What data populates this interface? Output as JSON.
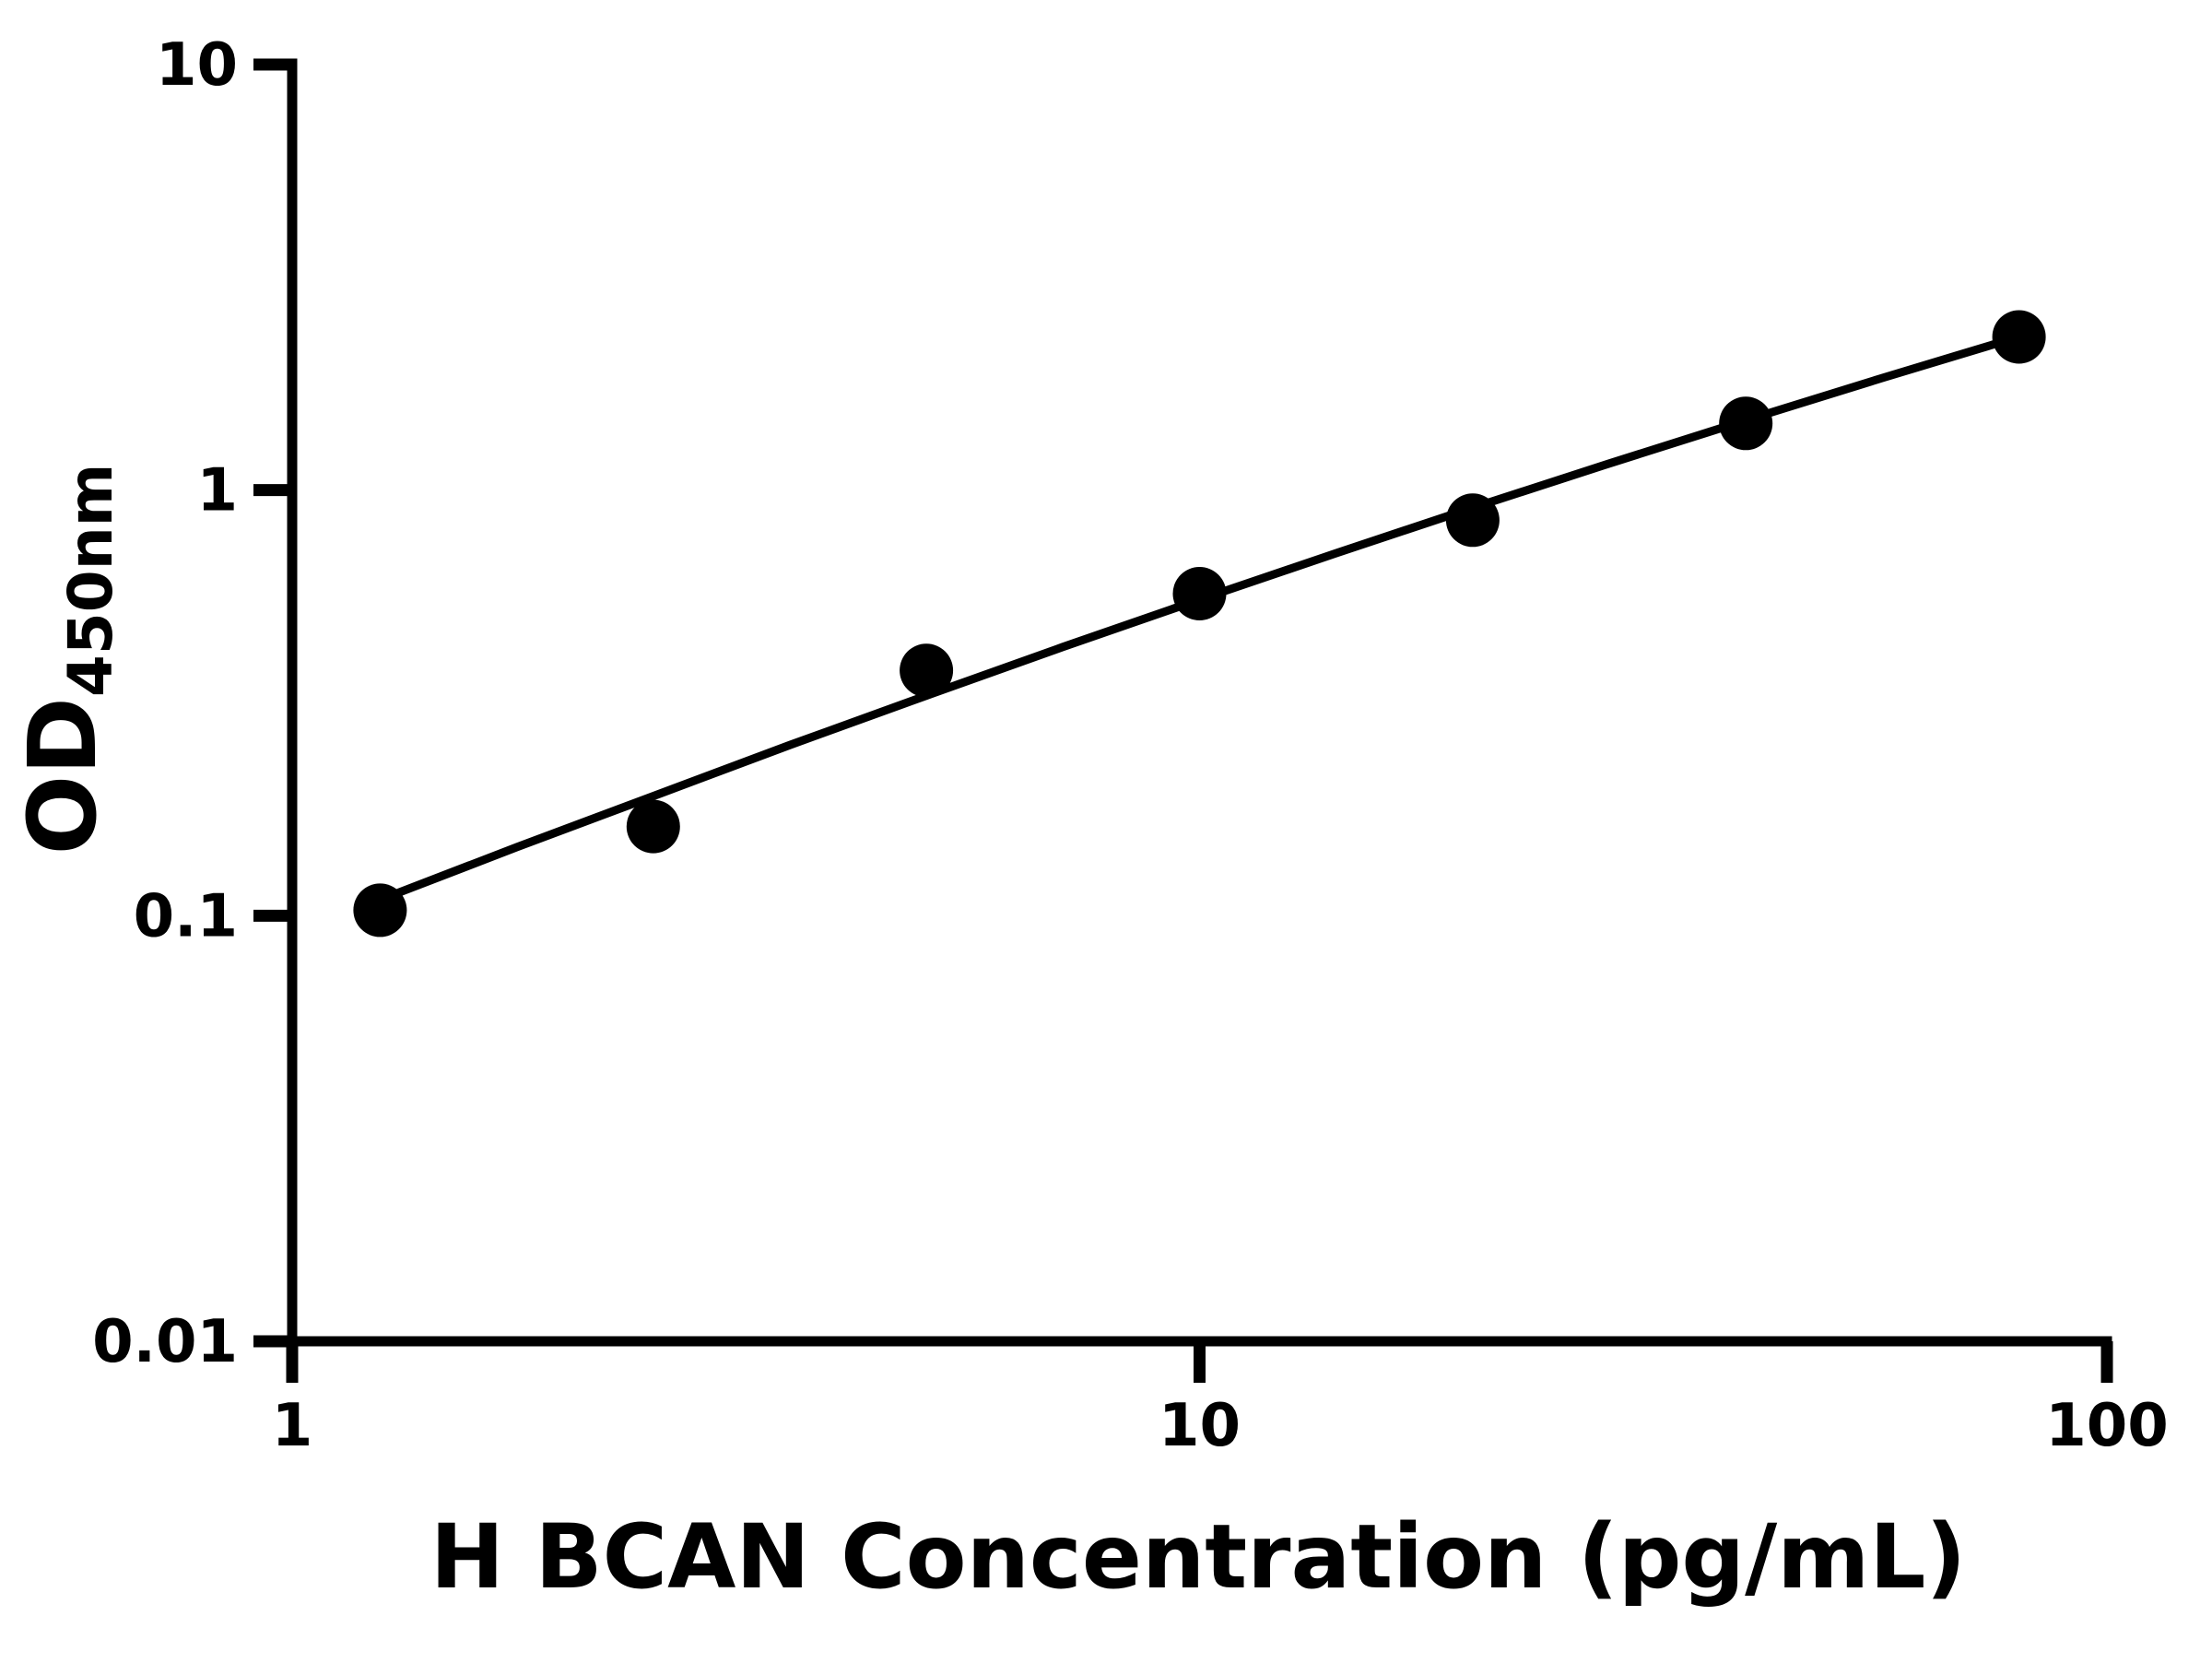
{
  "figure": {
    "background": "#ffffff",
    "ink_color": "#000000"
  },
  "chart_data": {
    "type": "scatter",
    "title": "",
    "xlabel": "H BCAN Concentration (pg/mL)",
    "ylabel": {
      "main": "OD",
      "subscript": "450nm"
    },
    "x_scale": "log10",
    "y_scale": "log10",
    "xlim": [
      1,
      100
    ],
    "ylim": [
      0.01,
      10
    ],
    "grid": false,
    "legend": null,
    "x_ticks": [
      {
        "value": 1,
        "label": "1"
      },
      {
        "value": 10,
        "label": "10"
      },
      {
        "value": 100,
        "label": "100"
      }
    ],
    "y_ticks": [
      {
        "value": 0.01,
        "label": "0.01"
      },
      {
        "value": 0.1,
        "label": "0.1"
      },
      {
        "value": 1,
        "label": "1"
      },
      {
        "value": 10,
        "label": "10"
      }
    ],
    "series": [
      {
        "name": "standard-points",
        "marker": "circle",
        "color": "#000000",
        "points": [
          {
            "x": 1.25,
            "y": 0.103
          },
          {
            "x": 2.5,
            "y": 0.162
          },
          {
            "x": 5,
            "y": 0.377
          },
          {
            "x": 10,
            "y": 0.571
          },
          {
            "x": 20,
            "y": 0.85
          },
          {
            "x": 40,
            "y": 1.435
          },
          {
            "x": 80,
            "y": 2.29
          }
        ]
      }
    ],
    "fit_curve": {
      "name": "fitted-standard-curve",
      "color": "#000000",
      "points": [
        [
          1.25,
          0.109
        ],
        [
          1.77,
          0.145
        ],
        [
          2.5,
          0.191
        ],
        [
          3.54,
          0.252
        ],
        [
          5,
          0.329
        ],
        [
          7.07,
          0.428
        ],
        [
          10,
          0.553
        ],
        [
          14.14,
          0.711
        ],
        [
          20,
          0.909
        ],
        [
          28.28,
          1.155
        ],
        [
          40,
          1.459
        ],
        [
          56.57,
          1.835
        ],
        [
          80,
          2.293
        ]
      ]
    }
  }
}
